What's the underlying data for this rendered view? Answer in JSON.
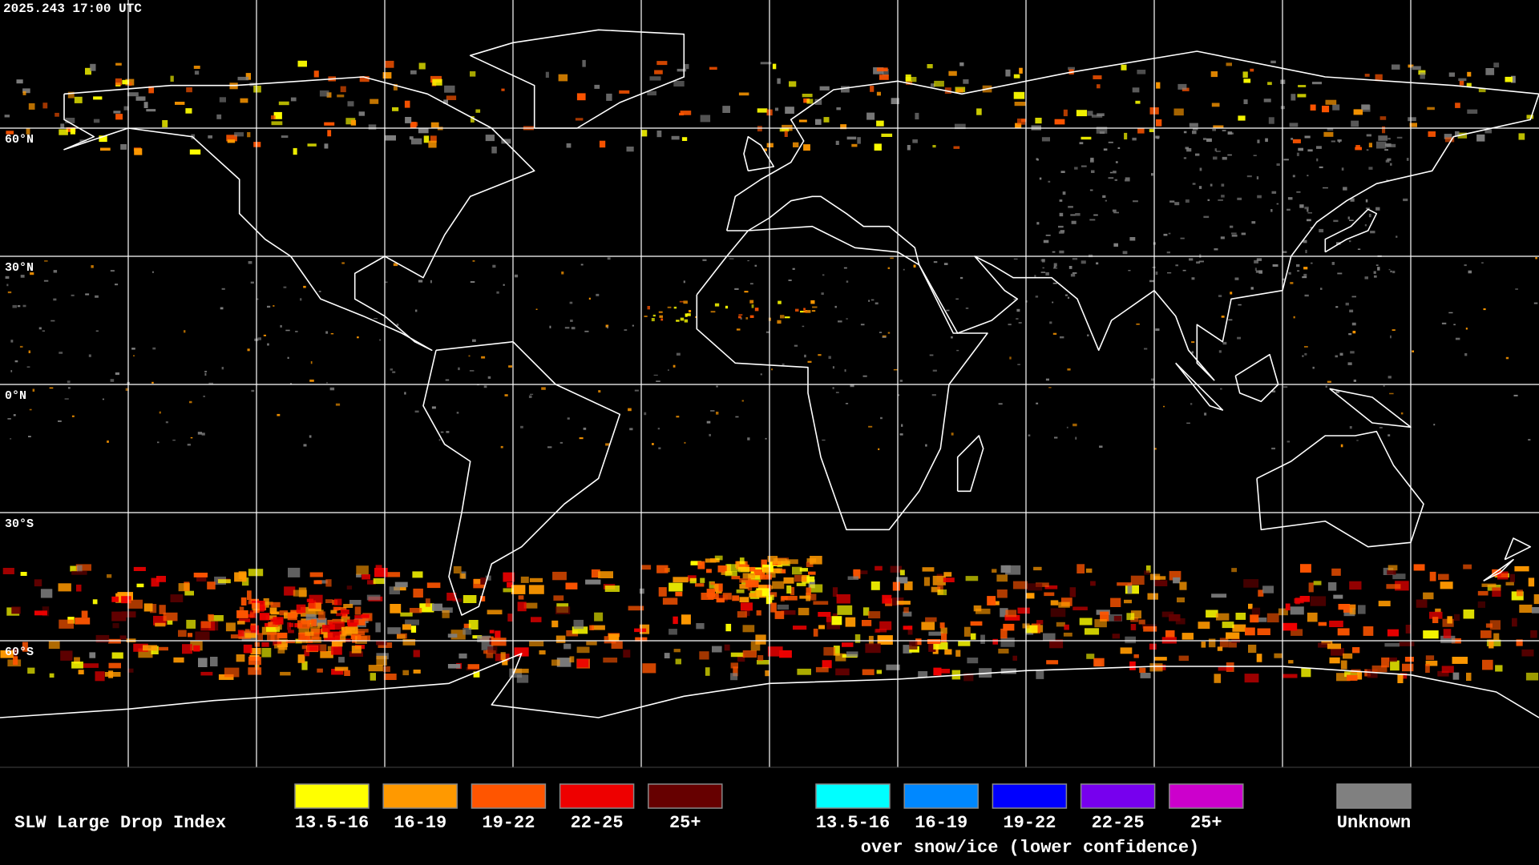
{
  "header": {
    "timestamp": "2025.243 17:00 UTC"
  },
  "grid": {
    "lat_labels": [
      "60°N",
      "30°N",
      "0°N",
      "30°S",
      "60°S"
    ]
  },
  "legend": {
    "title": "SLW Large Drop Index",
    "items": [
      {
        "label": "13.5-16",
        "color": "#ffff00"
      },
      {
        "label": "16-19",
        "color": "#ff9900"
      },
      {
        "label": "19-22",
        "color": "#ff5500"
      },
      {
        "label": "22-25",
        "color": "#ee0000"
      },
      {
        "label": "25+",
        "color": "#660000"
      }
    ],
    "snow_items": [
      {
        "label": "13.5-16",
        "color": "#00ffff"
      },
      {
        "label": "16-19",
        "color": "#0088ff"
      },
      {
        "label": "19-22",
        "color": "#0000ff"
      },
      {
        "label": "22-25",
        "color": "#7700ee"
      },
      {
        "label": "25+",
        "color": "#cc00cc"
      }
    ],
    "snow_caption": "over snow/ice (lower confidence)",
    "unknown": {
      "label": "Unknown",
      "color": "#808080"
    }
  }
}
